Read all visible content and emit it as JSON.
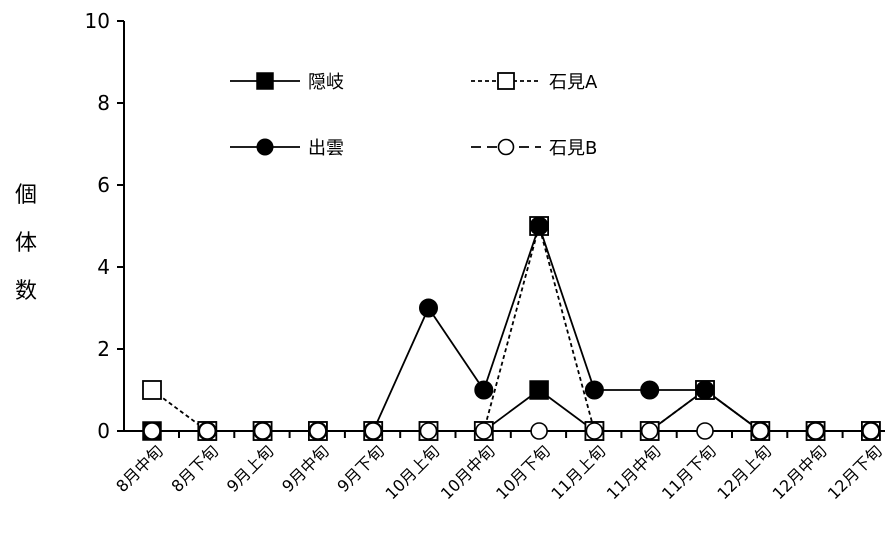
{
  "chart_data": {
    "type": "line",
    "title": "",
    "xlabel": "",
    "ylabel": "個体数",
    "ylim": [
      0,
      10
    ],
    "yticks": [
      0,
      2,
      4,
      6,
      8,
      10
    ],
    "grid": false,
    "legend_position": "top-center",
    "categories": [
      "8月中旬",
      "8月下旬",
      "9月上旬",
      "9月中旬",
      "9月下旬",
      "10月上旬",
      "10月中旬",
      "10月下旬",
      "11月上旬",
      "11月中旬",
      "11月下旬",
      "12月上旬",
      "12月中旬",
      "12月下旬"
    ],
    "series": [
      {
        "name": "隠岐",
        "marker": "square-filled",
        "line": "solid",
        "values": [
          0,
          0,
          0,
          0,
          0,
          0,
          0,
          1,
          0,
          0,
          1,
          0,
          0,
          0
        ]
      },
      {
        "name": "石見A",
        "marker": "square-open",
        "line": "dotted",
        "values": [
          1,
          0,
          0,
          0,
          0,
          0,
          0,
          5,
          0,
          0,
          1,
          0,
          0,
          0
        ]
      },
      {
        "name": "出雲",
        "marker": "circle-filled",
        "line": "solid",
        "values": [
          0,
          0,
          0,
          0,
          0,
          3,
          1,
          5,
          1,
          1,
          1,
          0,
          0,
          0
        ]
      },
      {
        "name": "石見B",
        "marker": "circle-open",
        "line": "dashed",
        "values": [
          0,
          0,
          0,
          0,
          0,
          0,
          0,
          0,
          0,
          0,
          0,
          0,
          0,
          0
        ]
      }
    ]
  }
}
